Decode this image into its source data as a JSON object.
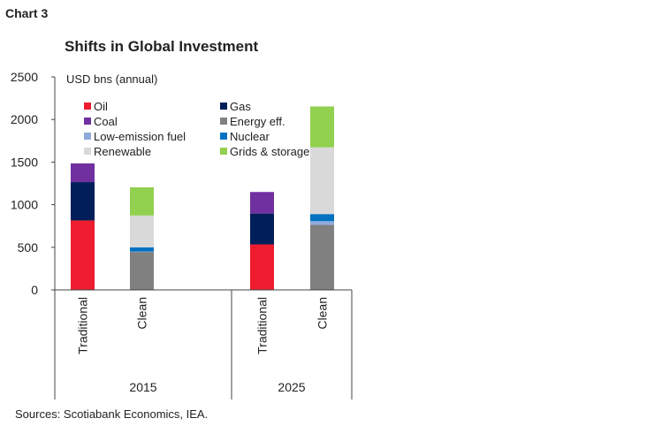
{
  "chart_label": "Chart 3",
  "source": "Sources: Scotiabank Economics, IEA.",
  "chart_data": {
    "type": "bar",
    "stacked": true,
    "title": "Shifts in Global Investment",
    "ylabel": "USD bns (annual)",
    "ylim": [
      0,
      2500
    ],
    "yticks": [
      0,
      500,
      1000,
      1500,
      2000,
      2500
    ],
    "legend_placement": "top",
    "groups": [
      "2015",
      "2025"
    ],
    "categories": [
      {
        "group": "2015",
        "label": "Traditional"
      },
      {
        "group": "2015",
        "label": "Clean"
      },
      {
        "group": "2025",
        "label": "Traditional"
      },
      {
        "group": "2025",
        "label": "Clean"
      }
    ],
    "series": [
      {
        "name": "Oil",
        "color": "#ed1c2e",
        "values": [
          815,
          0,
          534,
          0
        ]
      },
      {
        "name": "Gas",
        "color": "#001e5a",
        "values": [
          450,
          0,
          362,
          0
        ]
      },
      {
        "name": "Coal",
        "color": "#7030a0",
        "values": [
          220,
          0,
          253,
          0
        ]
      },
      {
        "name": "Energy eff.",
        "color": "#808080",
        "values": [
          0,
          445,
          0,
          763
        ]
      },
      {
        "name": "Low-emission fuel",
        "color": "#8faadc",
        "values": [
          0,
          5,
          0,
          44
        ]
      },
      {
        "name": "Nuclear",
        "color": "#0070c0",
        "values": [
          0,
          50,
          0,
          83
        ]
      },
      {
        "name": "Renewable",
        "color": "#d9d9d9",
        "values": [
          0,
          373,
          0,
          783
        ]
      },
      {
        "name": "Grids & storage",
        "color": "#92d050",
        "values": [
          0,
          331,
          0,
          480
        ]
      }
    ]
  }
}
